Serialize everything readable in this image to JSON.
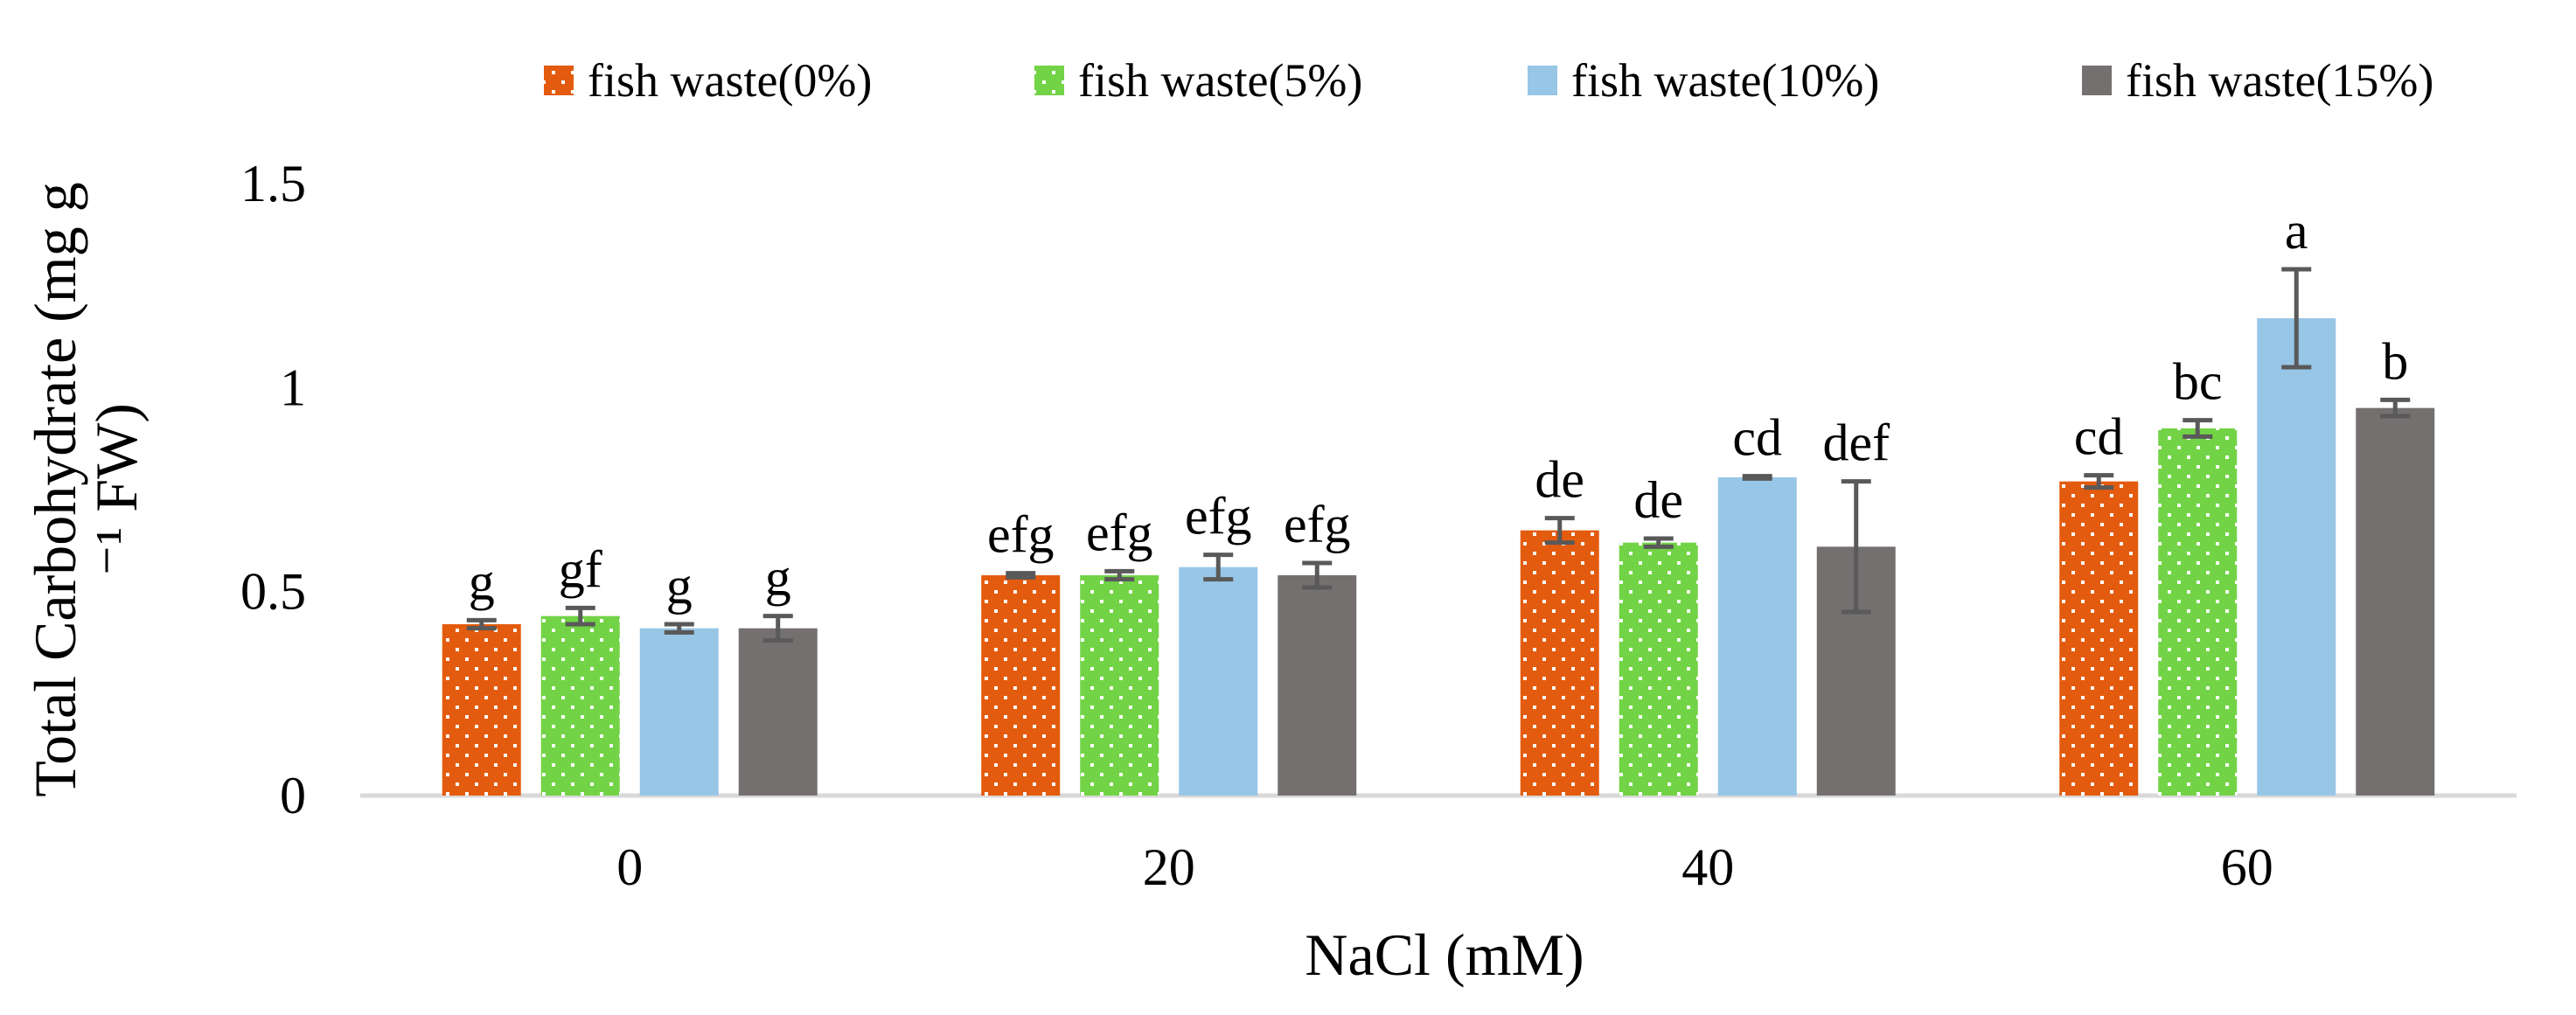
{
  "chart_data": {
    "type": "bar",
    "title": "",
    "xlabel": "NaCl (mM)",
    "ylabel_lines": [
      "Total Carbohydrate (mg g",
      "⁻¹ FW)"
    ],
    "categories": [
      "0",
      "20",
      "40",
      "60"
    ],
    "ylim": [
      0,
      1.5
    ],
    "yticks": [
      "0",
      "0.5",
      "1",
      "1.5"
    ],
    "ytick_values": [
      0,
      0.5,
      1,
      1.5
    ],
    "grid": false,
    "legend_position": "top",
    "series": [
      {
        "name": "fish waste(0%)",
        "color": "#E35B0E",
        "pattern": "dots",
        "values": [
          0.42,
          0.54,
          0.65,
          0.77
        ],
        "errors": [
          0.01,
          0.005,
          0.03,
          0.015
        ],
        "letters": [
          "g",
          "efg",
          "de",
          "cd"
        ]
      },
      {
        "name": "fish waste(5%)",
        "color": "#72D346",
        "pattern": "dots",
        "values": [
          0.44,
          0.54,
          0.62,
          0.9
        ],
        "errors": [
          0.02,
          0.01,
          0.01,
          0.02
        ],
        "letters": [
          "gf",
          "efg",
          "de",
          "bc"
        ]
      },
      {
        "name": "fish waste(10%)",
        "color": "#97C6E7",
        "pattern": "solid",
        "values": [
          0.41,
          0.56,
          0.78,
          1.17
        ],
        "errors": [
          0.01,
          0.03,
          0.003,
          0.12
        ],
        "letters": [
          "g",
          "efg",
          "cd",
          "a"
        ]
      },
      {
        "name": "fish waste(15%)",
        "color": "#757070",
        "pattern": "solid",
        "values": [
          0.41,
          0.54,
          0.61,
          0.95
        ],
        "errors": [
          0.03,
          0.03,
          0.16,
          0.02
        ],
        "letters": [
          "g",
          "efg",
          "def",
          "b"
        ]
      }
    ]
  }
}
